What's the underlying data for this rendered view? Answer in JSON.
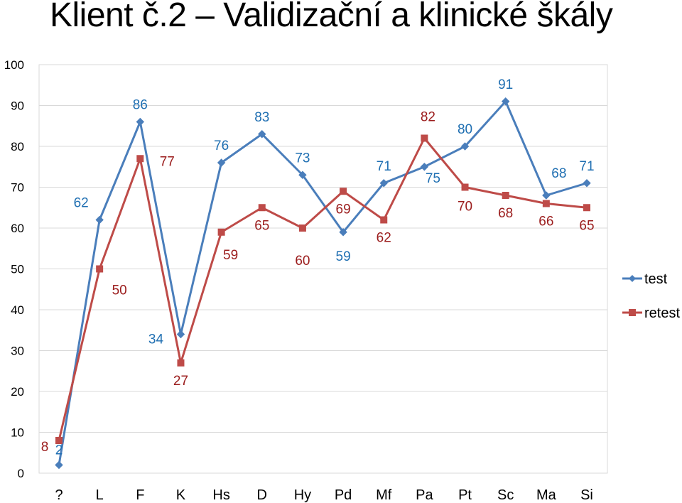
{
  "title": "Klient č.2 – Validizační a klinické škály",
  "chart_data": {
    "type": "line",
    "categories": [
      "?",
      "L",
      "F",
      "K",
      "Hs",
      "D",
      "Hy",
      "Pd",
      "Mf",
      "Pa",
      "Pt",
      "Sc",
      "Ma",
      "Si"
    ],
    "ylim": [
      0,
      100
    ],
    "yticks": [
      0,
      10,
      20,
      30,
      40,
      50,
      60,
      70,
      80,
      90,
      100
    ],
    "grid": true,
    "legend": "right",
    "series": [
      {
        "name": "test",
        "color": "#4a7ebb",
        "label_color": "#1f6fb2",
        "marker": "diamond",
        "values": [
          2,
          62,
          86,
          34,
          76,
          83,
          73,
          59,
          71,
          75,
          80,
          91,
          68,
          71
        ]
      },
      {
        "name": "retest",
        "color": "#be4b48",
        "label_color": "#9b1c1c",
        "marker": "square",
        "values": [
          8,
          50,
          77,
          27,
          59,
          65,
          60,
          69,
          62,
          82,
          70,
          68,
          66,
          65
        ]
      }
    ]
  }
}
